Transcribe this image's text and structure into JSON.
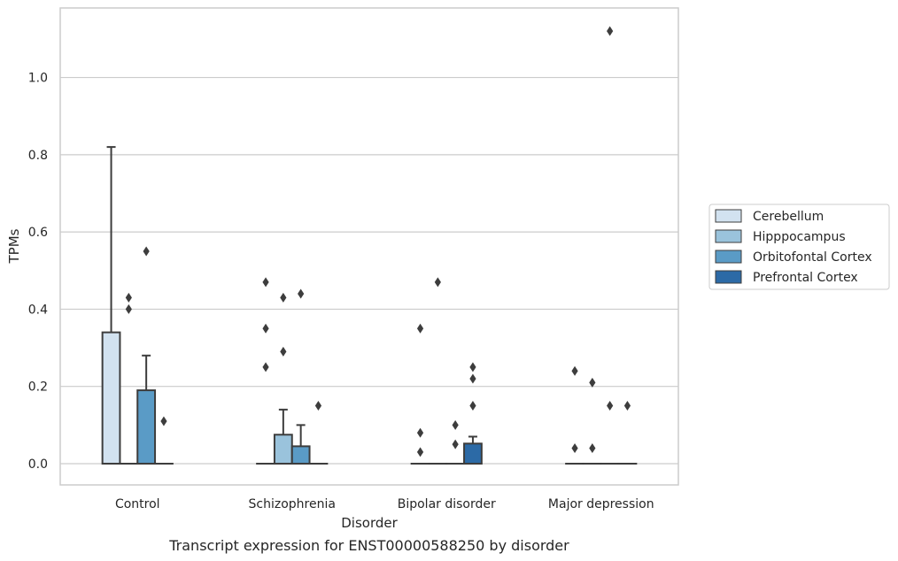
{
  "chart_data": {
    "type": "box",
    "title": "",
    "caption": "Transcript expression for ENST00000588250 by disorder",
    "xlabel": "Disorder",
    "ylabel": "TPMs",
    "ylim": [
      -0.055,
      1.18
    ],
    "yticks": [
      "0.0",
      "0.2",
      "0.4",
      "0.6",
      "0.8",
      "1.0"
    ],
    "grid": "horizontal",
    "legend_position": "right",
    "categories": [
      "Control",
      "Schizophrenia",
      "Bipolar disorder",
      "Major depression"
    ],
    "series": [
      {
        "name": "Cerebellum",
        "color": "#d2e2f0",
        "boxes": [
          {
            "category": "Control",
            "q1": 0,
            "median": 0,
            "q3": 0.34,
            "whisker_low": 0,
            "whisker_high": 0.82,
            "outliers": []
          },
          {
            "category": "Schizophrenia",
            "q1": 0,
            "median": 0,
            "q3": 0,
            "whisker_low": 0,
            "whisker_high": 0,
            "outliers": [
              0.47,
              0.35,
              0.25
            ]
          },
          {
            "category": "Bipolar disorder",
            "q1": 0,
            "median": 0,
            "q3": 0,
            "whisker_low": 0,
            "whisker_high": 0,
            "outliers": [
              0.35,
              0.08,
              0.03
            ]
          },
          {
            "category": "Major depression",
            "q1": 0,
            "median": 0,
            "q3": 0,
            "whisker_low": 0,
            "whisker_high": 0,
            "outliers": [
              0.24,
              0.04
            ]
          }
        ]
      },
      {
        "name": "Hipppocampus",
        "color": "#9ac3dc",
        "boxes": [
          {
            "category": "Control",
            "q1": 0,
            "median": 0,
            "q3": 0,
            "whisker_low": 0,
            "whisker_high": 0,
            "outliers": [
              0.43,
              0.4
            ]
          },
          {
            "category": "Schizophrenia",
            "q1": 0,
            "median": 0,
            "q3": 0.075,
            "whisker_low": 0,
            "whisker_high": 0.14,
            "outliers": [
              0.43,
              0.29
            ]
          },
          {
            "category": "Bipolar disorder",
            "q1": 0,
            "median": 0,
            "q3": 0,
            "whisker_low": 0,
            "whisker_high": 0,
            "outliers": [
              0.47
            ]
          },
          {
            "category": "Major depression",
            "q1": 0,
            "median": 0,
            "q3": 0,
            "whisker_low": 0,
            "whisker_high": 0,
            "outliers": [
              0.21,
              0.04
            ]
          }
        ]
      },
      {
        "name": "Orbitofontal Cortex",
        "color": "#5a9bc6",
        "boxes": [
          {
            "category": "Control",
            "q1": 0,
            "median": 0,
            "q3": 0.19,
            "whisker_low": 0,
            "whisker_high": 0.28,
            "outliers": [
              0.55
            ]
          },
          {
            "category": "Schizophrenia",
            "q1": 0,
            "median": 0,
            "q3": 0.045,
            "whisker_low": 0,
            "whisker_high": 0.1,
            "outliers": [
              0.44
            ]
          },
          {
            "category": "Bipolar disorder",
            "q1": 0,
            "median": 0,
            "q3": 0,
            "whisker_low": 0,
            "whisker_high": 0,
            "outliers": [
              0.1,
              0.05
            ]
          },
          {
            "category": "Major depression",
            "q1": 0,
            "median": 0,
            "q3": 0,
            "whisker_low": 0,
            "whisker_high": 0,
            "outliers": [
              1.12,
              0.15
            ]
          }
        ]
      },
      {
        "name": "Prefrontal Cortex",
        "color": "#2c6aa6",
        "boxes": [
          {
            "category": "Control",
            "q1": 0,
            "median": 0,
            "q3": 0,
            "whisker_low": 0,
            "whisker_high": 0,
            "outliers": [
              0.11
            ]
          },
          {
            "category": "Schizophrenia",
            "q1": 0,
            "median": 0,
            "q3": 0,
            "whisker_low": 0,
            "whisker_high": 0,
            "outliers": [
              0.15
            ]
          },
          {
            "category": "Bipolar disorder",
            "q1": 0,
            "median": 0,
            "q3": 0.052,
            "whisker_low": 0,
            "whisker_high": 0.07,
            "outliers": [
              0.25,
              0.22,
              0.15
            ]
          },
          {
            "category": "Major depression",
            "q1": 0,
            "median": 0,
            "q3": 0,
            "whisker_low": 0,
            "whisker_high": 0,
            "outliers": [
              0.15
            ]
          }
        ]
      }
    ]
  }
}
